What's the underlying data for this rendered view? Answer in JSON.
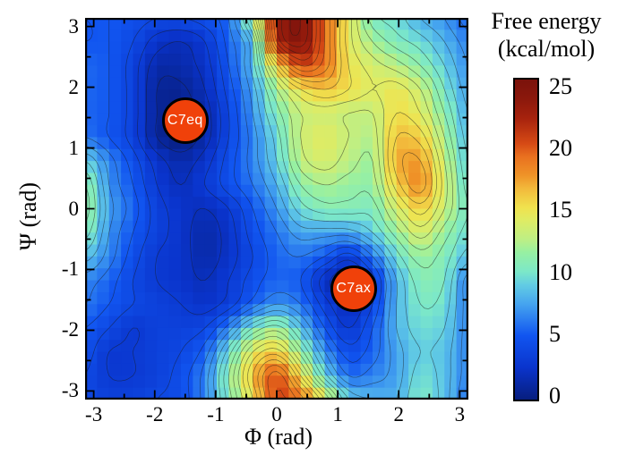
{
  "title": {
    "line1": "Free energy",
    "line2": "(kcal/mol)"
  },
  "axes": {
    "x": {
      "label": "Φ (rad)",
      "ticks": [
        -3,
        -2,
        -1,
        0,
        1,
        2,
        3
      ],
      "range": [
        -3.1416,
        3.1416
      ]
    },
    "y": {
      "label": "Ψ (rad)",
      "ticks": [
        3,
        2,
        1,
        0,
        -1,
        -2,
        -3
      ],
      "range": [
        -3.1416,
        3.1416
      ]
    }
  },
  "colorbar": {
    "ticks": [
      25,
      20,
      15,
      10,
      5,
      0
    ],
    "min": 0,
    "max": 25,
    "colormap": [
      [
        0,
        "#071E7E"
      ],
      [
        2.5,
        "#0A34CC"
      ],
      [
        5,
        "#1155F0"
      ],
      [
        7.5,
        "#46A5EF"
      ],
      [
        9,
        "#63CDE3"
      ],
      [
        10,
        "#7CE8C8"
      ],
      [
        11.5,
        "#97F0A2"
      ],
      [
        12.5,
        "#BDEF85"
      ],
      [
        14,
        "#DFEC64"
      ],
      [
        15,
        "#F0E24E"
      ],
      [
        16.5,
        "#F2B93B"
      ],
      [
        17.5,
        "#EF9428"
      ],
      [
        19,
        "#E9701F"
      ],
      [
        20,
        "#D64A15"
      ],
      [
        22,
        "#A6220D"
      ],
      [
        23.5,
        "#8B180C"
      ],
      [
        25,
        "#7A120B"
      ]
    ]
  },
  "colors": {
    "marker_fill": "#F0410A",
    "marker_border": "#000000",
    "contour_line": "rgba(25,25,25,0.55)",
    "axis_color": "#000000"
  },
  "chart_data": {
    "type": "heatmap",
    "title": "Free energy (kcal/mol)",
    "xlabel": "Φ (rad)",
    "ylabel": "Ψ (rad)",
    "x_range": [
      -3.1416,
      3.1416
    ],
    "y_range": [
      -3.1416,
      3.1416
    ],
    "z_label": "Free energy",
    "z_unit": "kcal/mol",
    "z_range": [
      0,
      25
    ],
    "contour_interval": 1,
    "contour_min": 1,
    "contour_max": 24,
    "heatmap_cells": 32,
    "phi": [
      -3.142,
      -2.749,
      -2.356,
      -1.963,
      -1.571,
      -1.178,
      -0.785,
      -0.393,
      0.0,
      0.393,
      0.785,
      1.178,
      1.571,
      1.963,
      2.356,
      2.749,
      3.142
    ],
    "psi_rows_top_to_bottom": [
      3.142,
      2.749,
      2.356,
      1.963,
      1.571,
      1.178,
      0.785,
      0.393,
      0.0,
      -0.393,
      -0.785,
      -1.178,
      -1.571,
      -1.963,
      -2.356,
      -2.749,
      -3.142
    ],
    "free_energy_grid": [
      [
        5.0,
        5.0,
        4.5,
        4.0,
        4.0,
        4.5,
        6.0,
        12.0,
        22.0,
        24.0,
        19.0,
        14.5,
        10.5,
        9.5,
        8.0,
        7.0,
        5.5
      ],
      [
        5.0,
        5.0,
        4.0,
        2.5,
        2.0,
        3.0,
        5.5,
        9.0,
        21.0,
        23.5,
        19.0,
        14.5,
        12.0,
        10.5,
        9.5,
        8.0,
        6.5
      ],
      [
        5.5,
        5.0,
        3.5,
        1.5,
        1.5,
        2.5,
        5.0,
        8.5,
        15.5,
        20.0,
        18.5,
        15.0,
        13.5,
        12.5,
        11.0,
        9.0,
        7.0
      ],
      [
        5.5,
        5.0,
        3.5,
        1.0,
        0.8,
        2.0,
        4.5,
        7.5,
        12.0,
        15.0,
        16.0,
        15.0,
        14.0,
        14.5,
        13.0,
        10.0,
        7.5
      ],
      [
        5.5,
        5.0,
        3.5,
        1.0,
        0.5,
        1.5,
        4.0,
        7.0,
        10.5,
        13.0,
        13.5,
        13.0,
        13.0,
        15.0,
        14.0,
        11.0,
        8.0
      ],
      [
        6.0,
        5.0,
        3.5,
        1.0,
        0.2,
        1.5,
        4.0,
        6.5,
        9.5,
        13.0,
        14.0,
        13.0,
        12.5,
        16.0,
        15.5,
        12.0,
        8.5
      ],
      [
        9.0,
        6.5,
        4.5,
        2.5,
        1.5,
        2.5,
        4.5,
        6.5,
        9.0,
        12.5,
        13.5,
        12.5,
        12.0,
        16.5,
        17.0,
        13.0,
        9.0
      ],
      [
        11.0,
        7.0,
        5.0,
        3.0,
        2.0,
        3.0,
        4.5,
        6.0,
        8.0,
        11.0,
        12.0,
        11.5,
        11.5,
        15.5,
        17.5,
        13.5,
        9.5
      ],
      [
        11.5,
        7.5,
        5.5,
        3.5,
        2.5,
        2.0,
        3.0,
        5.0,
        7.0,
        9.5,
        10.5,
        10.5,
        10.5,
        13.5,
        15.5,
        13.0,
        10.0
      ],
      [
        10.5,
        7.0,
        5.0,
        3.5,
        2.5,
        1.5,
        2.5,
        4.5,
        6.0,
        7.5,
        7.5,
        7.5,
        9.0,
        11.5,
        13.5,
        11.5,
        9.5
      ],
      [
        8.5,
        6.5,
        4.5,
        3.0,
        2.5,
        1.5,
        2.5,
        4.0,
        5.5,
        6.0,
        5.0,
        3.5,
        6.0,
        9.5,
        11.5,
        10.5,
        8.5
      ],
      [
        6.5,
        5.5,
        4.0,
        3.0,
        2.5,
        2.0,
        3.0,
        4.5,
        5.5,
        5.0,
        2.5,
        1.0,
        3.5,
        8.0,
        10.5,
        10.0,
        6.5
      ],
      [
        6.0,
        5.0,
        4.0,
        3.5,
        3.0,
        2.5,
        3.5,
        5.5,
        7.0,
        6.0,
        3.5,
        2.0,
        4.0,
        8.0,
        10.0,
        9.5,
        6.5
      ],
      [
        5.0,
        4.0,
        3.0,
        3.5,
        3.5,
        4.0,
        6.5,
        10.0,
        11.5,
        8.5,
        5.0,
        3.0,
        5.0,
        8.0,
        9.5,
        9.0,
        6.5
      ],
      [
        4.5,
        3.0,
        3.0,
        3.5,
        4.0,
        5.5,
        9.5,
        14.0,
        15.5,
        11.5,
        7.0,
        4.5,
        5.5,
        7.5,
        9.0,
        8.5,
        6.5
      ],
      [
        4.0,
        3.0,
        3.0,
        3.5,
        4.5,
        6.5,
        11.0,
        16.0,
        19.5,
        15.0,
        9.5,
        6.0,
        6.5,
        7.5,
        9.5,
        8.5,
        6.5
      ],
      [
        4.0,
        3.5,
        3.5,
        4.0,
        4.5,
        6.5,
        10.5,
        15.0,
        20.0,
        18.5,
        14.0,
        9.0,
        8.0,
        8.0,
        10.0,
        8.5,
        6.0
      ]
    ],
    "annotations": [
      {
        "label": "C7eq",
        "phi": -1.5,
        "psi": 1.45
      },
      {
        "label": "C7ax",
        "phi": 1.26,
        "psi": -1.32
      }
    ]
  }
}
